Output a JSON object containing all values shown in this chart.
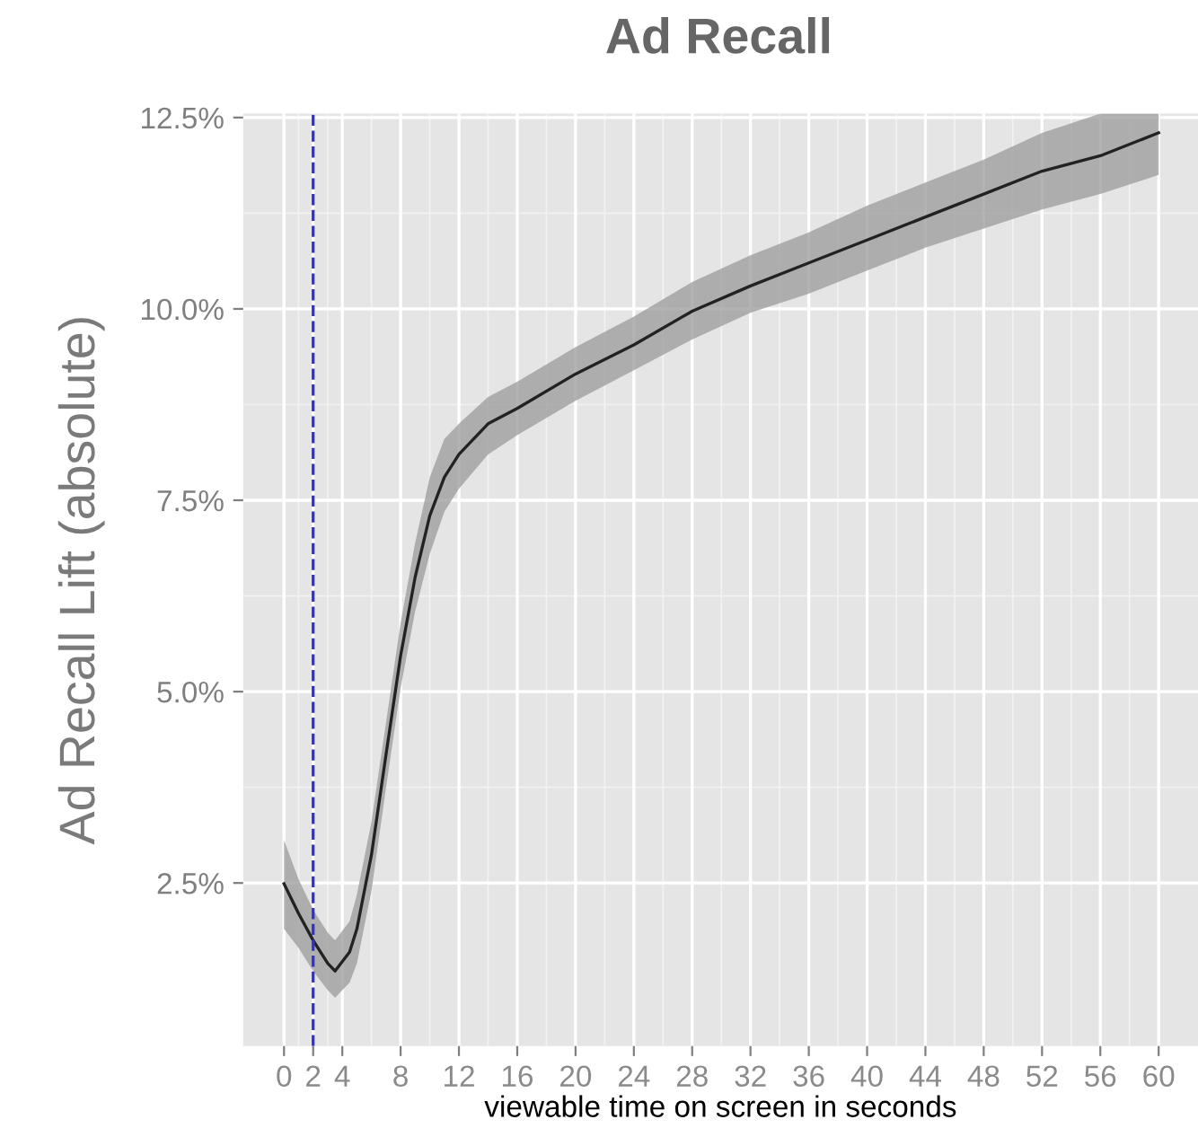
{
  "chart_data": {
    "type": "line",
    "title": "Ad Recall",
    "xlabel": "viewable time on screen in seconds",
    "ylabel": "Ad Recall Lift (absolute)",
    "x": [
      0,
      1,
      2,
      3,
      3.5,
      4.5,
      5,
      6,
      7,
      8,
      9,
      10,
      11,
      12,
      14,
      16,
      20,
      24,
      28,
      32,
      36,
      40,
      44,
      48,
      52,
      56,
      60
    ],
    "series": [
      {
        "color": "#222222",
        "values": [
          2.49,
          2.1,
          1.75,
          1.45,
          1.35,
          1.6,
          1.9,
          2.87,
          4.18,
          5.47,
          6.5,
          7.3,
          7.8,
          8.1,
          8.5,
          8.7,
          9.15,
          9.53,
          9.97,
          10.3,
          10.6,
          10.9,
          11.2,
          11.5,
          11.8,
          12.0,
          12.3
        ],
        "lower": [
          1.9,
          1.65,
          1.35,
          1.1,
          1.0,
          1.2,
          1.45,
          2.4,
          3.75,
          5.05,
          6.05,
          6.8,
          7.35,
          7.65,
          8.1,
          8.35,
          8.8,
          9.2,
          9.6,
          9.95,
          10.2,
          10.5,
          10.8,
          11.05,
          11.3,
          11.5,
          11.75
        ],
        "upper": [
          3.06,
          2.55,
          2.15,
          1.85,
          1.75,
          2.0,
          2.35,
          3.3,
          4.6,
          5.9,
          6.95,
          7.8,
          8.3,
          8.5,
          8.85,
          9.05,
          9.5,
          9.9,
          10.35,
          10.7,
          11.0,
          11.35,
          11.65,
          11.95,
          12.3,
          12.55,
          12.55
        ]
      }
    ],
    "xlim": [
      -2.8,
      62.7
    ],
    "ylim": [
      0.37,
      12.55
    ],
    "xticks": [
      0,
      2,
      4,
      8,
      12,
      16,
      20,
      24,
      28,
      32,
      36,
      40,
      44,
      48,
      52,
      56,
      60
    ],
    "yticks": [
      {
        "value": 2.5,
        "label": "2.5%"
      },
      {
        "value": 5.0,
        "label": "5.0%"
      },
      {
        "value": 7.5,
        "label": "7.5%"
      },
      {
        "value": 10.0,
        "label": "10.0%"
      },
      {
        "value": 12.5,
        "label": "12.5%"
      }
    ],
    "ref_lines": [
      {
        "axis": "x",
        "value": 2,
        "color": "#3333cc",
        "line_style": "dashed"
      }
    ],
    "grid": true,
    "marker": "none",
    "line_style": "solid"
  }
}
